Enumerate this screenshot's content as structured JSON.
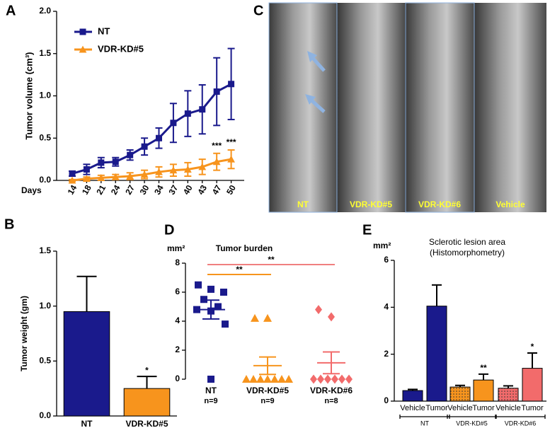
{
  "panel_letters": [
    "A",
    "C",
    "B",
    "D",
    "E"
  ],
  "xray": {
    "labels": [
      "NT",
      "VDR-KD#5",
      "VDR-KD#6",
      "Vehicle"
    ]
  },
  "chart_data": [
    {
      "type": "line",
      "y_label": "Tumor volume (cm³)",
      "x_label": "Days",
      "x": [
        "14",
        "18",
        "21",
        "24",
        "27",
        "30",
        "34",
        "37",
        "40",
        "43",
        "47",
        "50"
      ],
      "series": [
        {
          "name": "NT",
          "color": "#1a1a8c",
          "marker": "square",
          "values": [
            0.08,
            0.13,
            0.21,
            0.22,
            0.3,
            0.4,
            0.5,
            0.68,
            0.79,
            0.84,
            1.05,
            1.14
          ],
          "errors": [
            0.03,
            0.06,
            0.06,
            0.05,
            0.06,
            0.1,
            0.12,
            0.23,
            0.27,
            0.29,
            0.4,
            0.42
          ]
        },
        {
          "name": "VDR-KD#5",
          "color": "#f7941d",
          "marker": "triangle",
          "values": [
            0.0,
            0.02,
            0.03,
            0.04,
            0.05,
            0.07,
            0.1,
            0.12,
            0.13,
            0.16,
            0.22,
            0.25
          ],
          "errors": [
            0.01,
            0.02,
            0.03,
            0.03,
            0.04,
            0.05,
            0.06,
            0.07,
            0.08,
            0.09,
            0.1,
            0.11
          ]
        }
      ],
      "annotations": [
        null,
        null,
        null,
        null,
        null,
        null,
        null,
        null,
        null,
        null,
        "***",
        "***"
      ],
      "ylim": [
        0,
        2
      ],
      "yticks": [
        {
          "value": 0,
          "label": "0.0"
        },
        0.5,
        {
          "value": 1,
          "label": "1.0"
        },
        1.5,
        {
          "value": 2,
          "label": "2.0"
        }
      ]
    },
    {
      "type": "bar",
      "y_label": "Tumor weight (gm)",
      "categories": [
        "NT",
        "VDR-KD#5"
      ],
      "values": [
        0.95,
        0.25
      ],
      "errors": [
        0.32,
        0.11
      ],
      "colors": [
        "#1a1a8c",
        "#f7941d"
      ],
      "annotations": [
        null,
        "*"
      ],
      "ylim": [
        0,
        1.5
      ],
      "yticks": [
        {
          "value": 0,
          "label": "0.0"
        },
        0.5,
        {
          "value": 1,
          "label": "1.0"
        },
        1.5
      ]
    },
    {
      "type": "dot",
      "title": "Tumor burden",
      "unit": "mm²",
      "categories": [
        "NT",
        "VDR-KD#5",
        "VDR-KD#6"
      ],
      "category_notes": [
        "n=9",
        "n=9",
        "n=8"
      ],
      "groups": [
        {
          "color": "#1a1a8c",
          "marker": "square",
          "values": [
            6.5,
            6.2,
            6.0,
            5.5,
            5.0,
            4.8,
            4.7,
            3.8,
            0
          ],
          "mean": 4.8,
          "sem": 0.65
        },
        {
          "color": "#f7941d",
          "marker": "triangle",
          "values": [
            4.2,
            4.2,
            0,
            0,
            0,
            0,
            0,
            0,
            0
          ],
          "mean": 0.93,
          "sem": 0.6
        },
        {
          "color": "#f26b6b",
          "marker": "diamond",
          "values": [
            4.8,
            4.3,
            0,
            0,
            0,
            0,
            0,
            0
          ],
          "mean": 1.13,
          "sem": 0.75
        }
      ],
      "brackets": [
        {
          "between": [
            "NT",
            "VDR-KD#5"
          ],
          "label": "**",
          "color": "#f7941d"
        },
        {
          "between": [
            "NT",
            "VDR-KD#6"
          ],
          "label": "**",
          "color": "#f08080"
        }
      ],
      "ylim": [
        0,
        8
      ],
      "yticks": [
        0,
        2,
        4,
        6,
        8
      ]
    },
    {
      "type": "groupbar",
      "title": "Sclerotic lesion area",
      "subtitle": "(Histomorphometry)",
      "unit": "mm²",
      "categories": [
        "Vehicle",
        "Tumor",
        "Vehicle",
        "Tumor",
        "Vehicle",
        "Tumor"
      ],
      "groups": [
        "NT",
        "VDR-KD#5",
        "VDR-KD#6"
      ],
      "values": [
        0.45,
        4.05,
        0.6,
        0.9,
        0.55,
        1.4
      ],
      "errors": [
        0.05,
        0.9,
        0.07,
        0.25,
        0.1,
        0.65
      ],
      "colors": [
        "#1a1a8c",
        "#1a1a8c",
        "#f7941d",
        "#f7941d",
        "#f26b6b",
        "#f26b6b"
      ],
      "hatched": [
        false,
        false,
        true,
        false,
        true,
        false
      ],
      "annotations": [
        null,
        null,
        null,
        "**",
        null,
        "*"
      ],
      "ylim": [
        0,
        6
      ],
      "yticks": [
        0,
        2,
        4,
        6
      ]
    }
  ]
}
